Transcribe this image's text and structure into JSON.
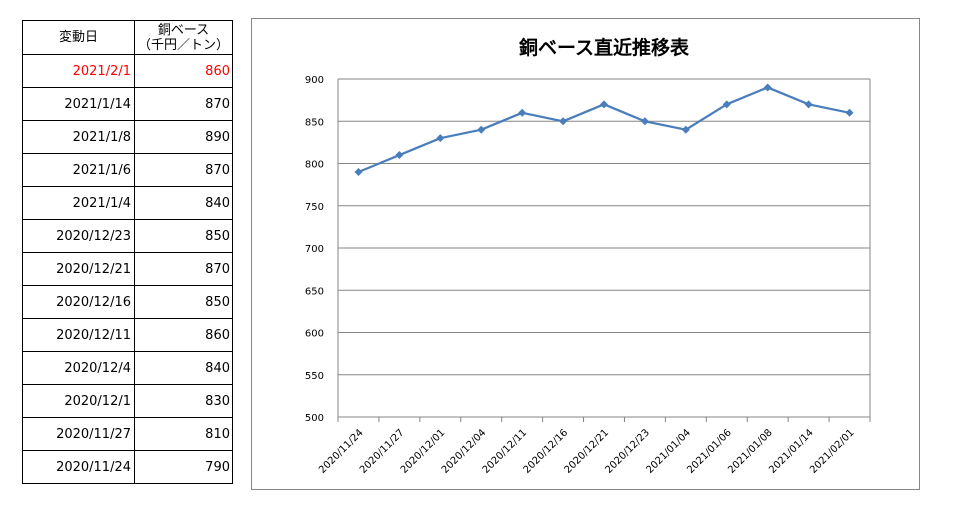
{
  "table": {
    "header_date": "変動日",
    "header_price_line1": "銅ベース",
    "header_price_line2": "（千円／トン）",
    "rows": [
      {
        "date": "2021/2/1",
        "price": "860"
      },
      {
        "date": "2021/1/14",
        "price": "870"
      },
      {
        "date": "2021/1/8",
        "price": "890"
      },
      {
        "date": "2021/1/6",
        "price": "870"
      },
      {
        "date": "2021/1/4",
        "price": "840"
      },
      {
        "date": "2020/12/23",
        "price": "850"
      },
      {
        "date": "2020/12/21",
        "price": "870"
      },
      {
        "date": "2020/12/16",
        "price": "850"
      },
      {
        "date": "2020/12/11",
        "price": "860"
      },
      {
        "date": "2020/12/4",
        "price": "840"
      },
      {
        "date": "2020/12/1",
        "price": "830"
      },
      {
        "date": "2020/11/27",
        "price": "810"
      },
      {
        "date": "2020/11/24",
        "price": "790"
      }
    ],
    "latest_color": "#ff0000"
  },
  "chart_data": {
    "type": "line",
    "title": "銅ベース直近推移表",
    "xlabel": "",
    "ylabel": "",
    "categories": [
      "2020/11/24",
      "2020/11/27",
      "2020/12/01",
      "2020/12/04",
      "2020/12/11",
      "2020/12/16",
      "2020/12/21",
      "2020/12/23",
      "2021/01/04",
      "2021/01/06",
      "2021/01/08",
      "2021/01/14",
      "2021/02/01"
    ],
    "series": [
      {
        "values": [
          790,
          810,
          830,
          840,
          860,
          850,
          870,
          850,
          840,
          870,
          890,
          870,
          860
        ],
        "color": "#4a7ebb"
      }
    ],
    "ylim": [
      500,
      900
    ],
    "yticks": [
      500,
      550,
      600,
      650,
      700,
      750,
      800,
      850,
      900
    ],
    "grid": true,
    "marker": "diamond",
    "legend": "none"
  }
}
